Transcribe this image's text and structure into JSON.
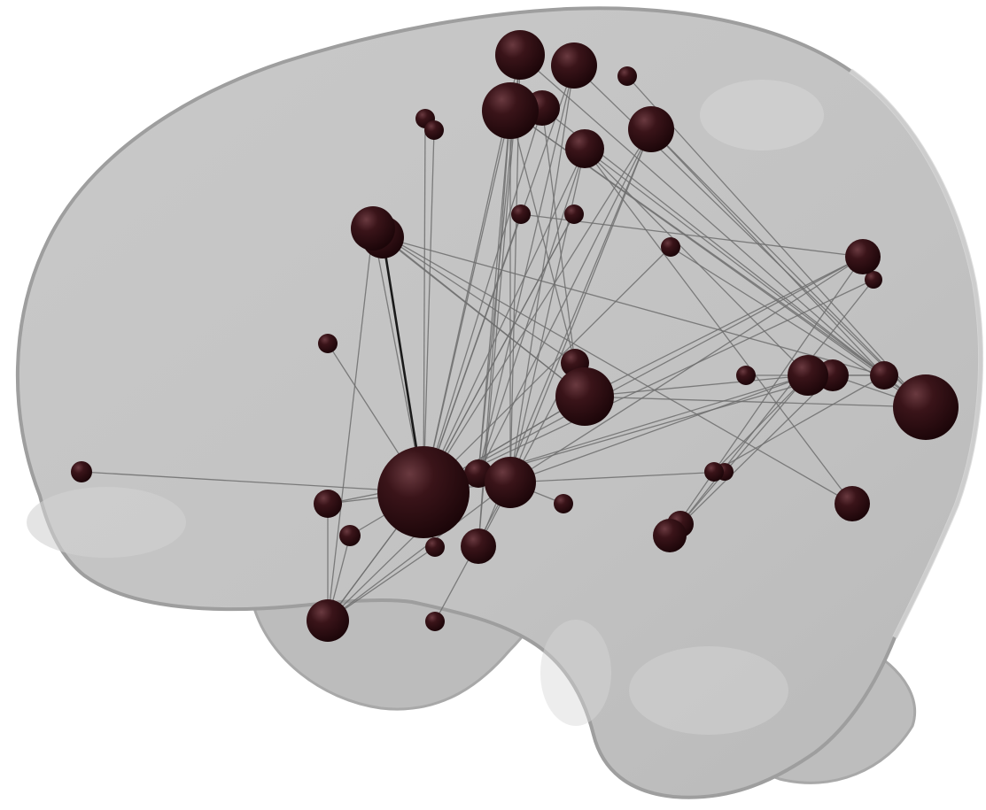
{
  "figure": {
    "type": "brain-connectivity-network",
    "view": "lateral",
    "colors": {
      "background": "#ffffff",
      "brain_fill": "#c4c4c4",
      "brain_highlight": "#dcdcdc",
      "brain_shadow": "#a9a9a9",
      "node": "#2a0a0f",
      "node_highlight": "#6a3a40",
      "edge": "#6e6e6e",
      "strong_edge": "#1a1a1a"
    }
  }
}
